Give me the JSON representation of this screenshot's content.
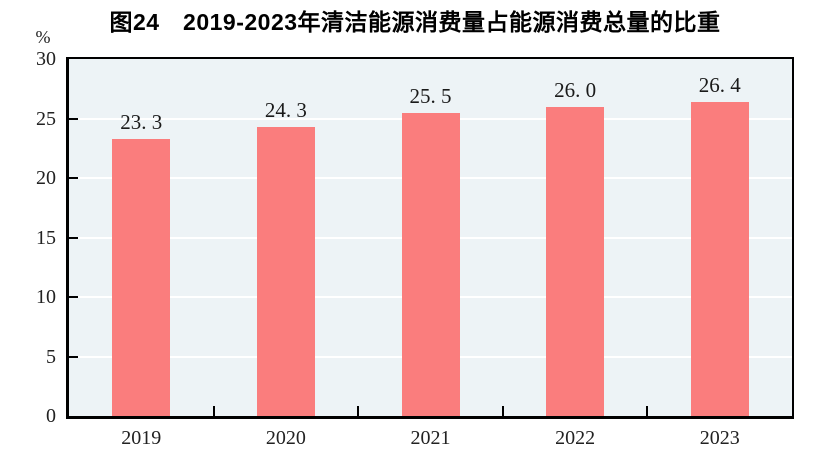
{
  "chart_data": {
    "type": "bar",
    "title": "图24　2019-2023年清洁能源消费量占能源消费总量的比重",
    "unit_label": "%",
    "categories": [
      "2019",
      "2020",
      "2021",
      "2022",
      "2023"
    ],
    "values": [
      23.3,
      24.3,
      25.5,
      26.0,
      26.4
    ],
    "value_labels": [
      "23. 3",
      "24. 3",
      "25. 5",
      "26. 0",
      "26. 4"
    ],
    "xlabel": "",
    "ylabel": "%",
    "ylim": [
      0,
      30
    ],
    "yticks": [
      0,
      5,
      10,
      15,
      20,
      25,
      30
    ],
    "grid": "horizontal",
    "legend": "none",
    "colors": {
      "bar_fill": "#fa7d7d",
      "plot_background": "#edf3f6",
      "gridline": "#ffffff",
      "axis": "#000000",
      "title_text": "#000000",
      "tick_text": "#222222"
    }
  }
}
